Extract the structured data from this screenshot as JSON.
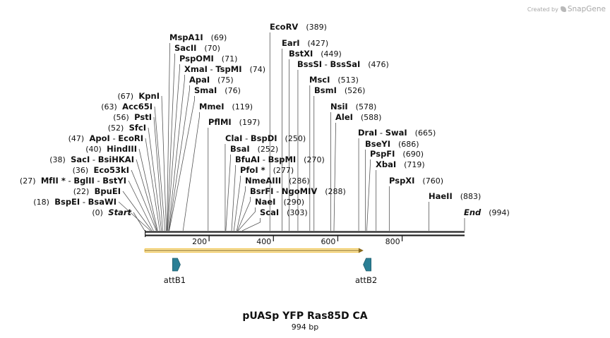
{
  "credit": {
    "prefix": "Created by",
    "brand": "SnapGene"
  },
  "map": {
    "name": "pUASp YFP Ras85D CA",
    "length_label": "994 bp",
    "length_bp": 994,
    "ticks": [
      "200",
      "400",
      "600",
      "800"
    ],
    "tick_values": [
      200,
      400,
      600,
      800
    ],
    "colors": {
      "feature": "#2b7f95",
      "orf": "#f0c24a",
      "line": "#222222"
    }
  },
  "sites": [
    {
      "names": [
        "Start"
      ],
      "pos": "(0)",
      "bp": 0,
      "side": "left",
      "italic": true
    },
    {
      "names": [
        "BspEI",
        "BsaWI"
      ],
      "pos": "(18)",
      "bp": 18,
      "side": "left"
    },
    {
      "names": [
        "BpuEI"
      ],
      "pos": "(22)",
      "bp": 22,
      "side": "left"
    },
    {
      "names": [
        "MfII *",
        "BglII",
        "BstYI"
      ],
      "pos": "(27)",
      "bp": 27,
      "side": "left"
    },
    {
      "names": [
        "Eco53kI"
      ],
      "pos": "(36)",
      "bp": 36,
      "side": "left"
    },
    {
      "names": [
        "SacI",
        "BsiHKAI"
      ],
      "pos": "(38)",
      "bp": 38,
      "side": "left"
    },
    {
      "names": [
        "HindIII"
      ],
      "pos": "(40)",
      "bp": 40,
      "side": "left"
    },
    {
      "names": [
        "ApoI",
        "EcoRI"
      ],
      "pos": "(47)",
      "bp": 47,
      "side": "left"
    },
    {
      "names": [
        "SfcI"
      ],
      "pos": "(52)",
      "bp": 52,
      "side": "left"
    },
    {
      "names": [
        "PstI"
      ],
      "pos": "(56)",
      "bp": 56,
      "side": "left"
    },
    {
      "names": [
        "Acc65I"
      ],
      "pos": "(63)",
      "bp": 63,
      "side": "left"
    },
    {
      "names": [
        "KpnI"
      ],
      "pos": "(67)",
      "bp": 67,
      "side": "left"
    },
    {
      "names": [
        "MspA1I"
      ],
      "pos": "(69)",
      "bp": 69,
      "side": "right"
    },
    {
      "names": [
        "SacII"
      ],
      "pos": "(70)",
      "bp": 70,
      "side": "right"
    },
    {
      "names": [
        "PspOMI"
      ],
      "pos": "(71)",
      "bp": 71,
      "side": "right"
    },
    {
      "names": [
        "XmaI",
        "TspMI"
      ],
      "pos": "(74)",
      "bp": 74,
      "side": "right"
    },
    {
      "names": [
        "ApaI"
      ],
      "pos": "(75)",
      "bp": 75,
      "side": "right"
    },
    {
      "names": [
        "SmaI"
      ],
      "pos": "(76)",
      "bp": 76,
      "side": "right"
    },
    {
      "names": [
        "MmeI"
      ],
      "pos": "(119)",
      "bp": 119,
      "side": "right"
    },
    {
      "names": [
        "PflMI"
      ],
      "pos": "(197)",
      "bp": 197,
      "side": "right"
    },
    {
      "names": [
        "EcoRV"
      ],
      "pos": "(389)",
      "bp": 389,
      "side": "right"
    },
    {
      "names": [
        "EarI"
      ],
      "pos": "(427)",
      "bp": 427,
      "side": "right"
    },
    {
      "names": [
        "BstXI"
      ],
      "pos": "(449)",
      "bp": 449,
      "side": "right"
    },
    {
      "names": [
        "BssSI",
        "BssSaI"
      ],
      "pos": "(476)",
      "bp": 476,
      "side": "right"
    },
    {
      "names": [
        "MscI"
      ],
      "pos": "(513)",
      "bp": 513,
      "side": "right"
    },
    {
      "names": [
        "BsmI"
      ],
      "pos": "(526)",
      "bp": 526,
      "side": "right"
    },
    {
      "names": [
        "ClaI",
        "BspDI"
      ],
      "pos": "(250)",
      "bp": 250,
      "side": "right"
    },
    {
      "names": [
        "BsaI"
      ],
      "pos": "(252)",
      "bp": 252,
      "side": "right"
    },
    {
      "names": [
        "BfuAI",
        "BspMI"
      ],
      "pos": "(270)",
      "bp": 270,
      "side": "right"
    },
    {
      "names": [
        "PfoI *"
      ],
      "pos": "(277)",
      "bp": 277,
      "side": "right"
    },
    {
      "names": [
        "NmeAIII"
      ],
      "pos": "(286)",
      "bp": 286,
      "side": "right"
    },
    {
      "names": [
        "BsrFI",
        "NgoMIV"
      ],
      "pos": "(288)",
      "bp": 288,
      "side": "right"
    },
    {
      "names": [
        "NaeI"
      ],
      "pos": "(290)",
      "bp": 290,
      "side": "right"
    },
    {
      "names": [
        "ScaI"
      ],
      "pos": "(303)",
      "bp": 303,
      "side": "right"
    },
    {
      "names": [
        "NsiI"
      ],
      "pos": "(578)",
      "bp": 578,
      "side": "right"
    },
    {
      "names": [
        "AleI"
      ],
      "pos": "(588)",
      "bp": 588,
      "side": "right"
    },
    {
      "names": [
        "DraI",
        "SwaI"
      ],
      "pos": "(665)",
      "bp": 665,
      "side": "right"
    },
    {
      "names": [
        "BseYI"
      ],
      "pos": "(686)",
      "bp": 686,
      "side": "right"
    },
    {
      "names": [
        "PspFI"
      ],
      "pos": "(690)",
      "bp": 690,
      "side": "right"
    },
    {
      "names": [
        "XbaI"
      ],
      "pos": "(719)",
      "bp": 719,
      "side": "right"
    },
    {
      "names": [
        "PspXI"
      ],
      "pos": "(760)",
      "bp": 760,
      "side": "right"
    },
    {
      "names": [
        "HaeII"
      ],
      "pos": "(883)",
      "bp": 883,
      "side": "right"
    },
    {
      "names": [
        "End"
      ],
      "pos": "(994)",
      "bp": 994,
      "side": "right",
      "italic": true
    }
  ],
  "features": [
    {
      "name": "attB1",
      "start_bp": 85,
      "end_bp": 110,
      "direction": "forward"
    },
    {
      "name": "attB2",
      "start_bp": 680,
      "end_bp": 705,
      "direction": "reverse"
    }
  ],
  "orf": {
    "start_bp": 0,
    "end_bp": 680,
    "direction": "forward"
  }
}
